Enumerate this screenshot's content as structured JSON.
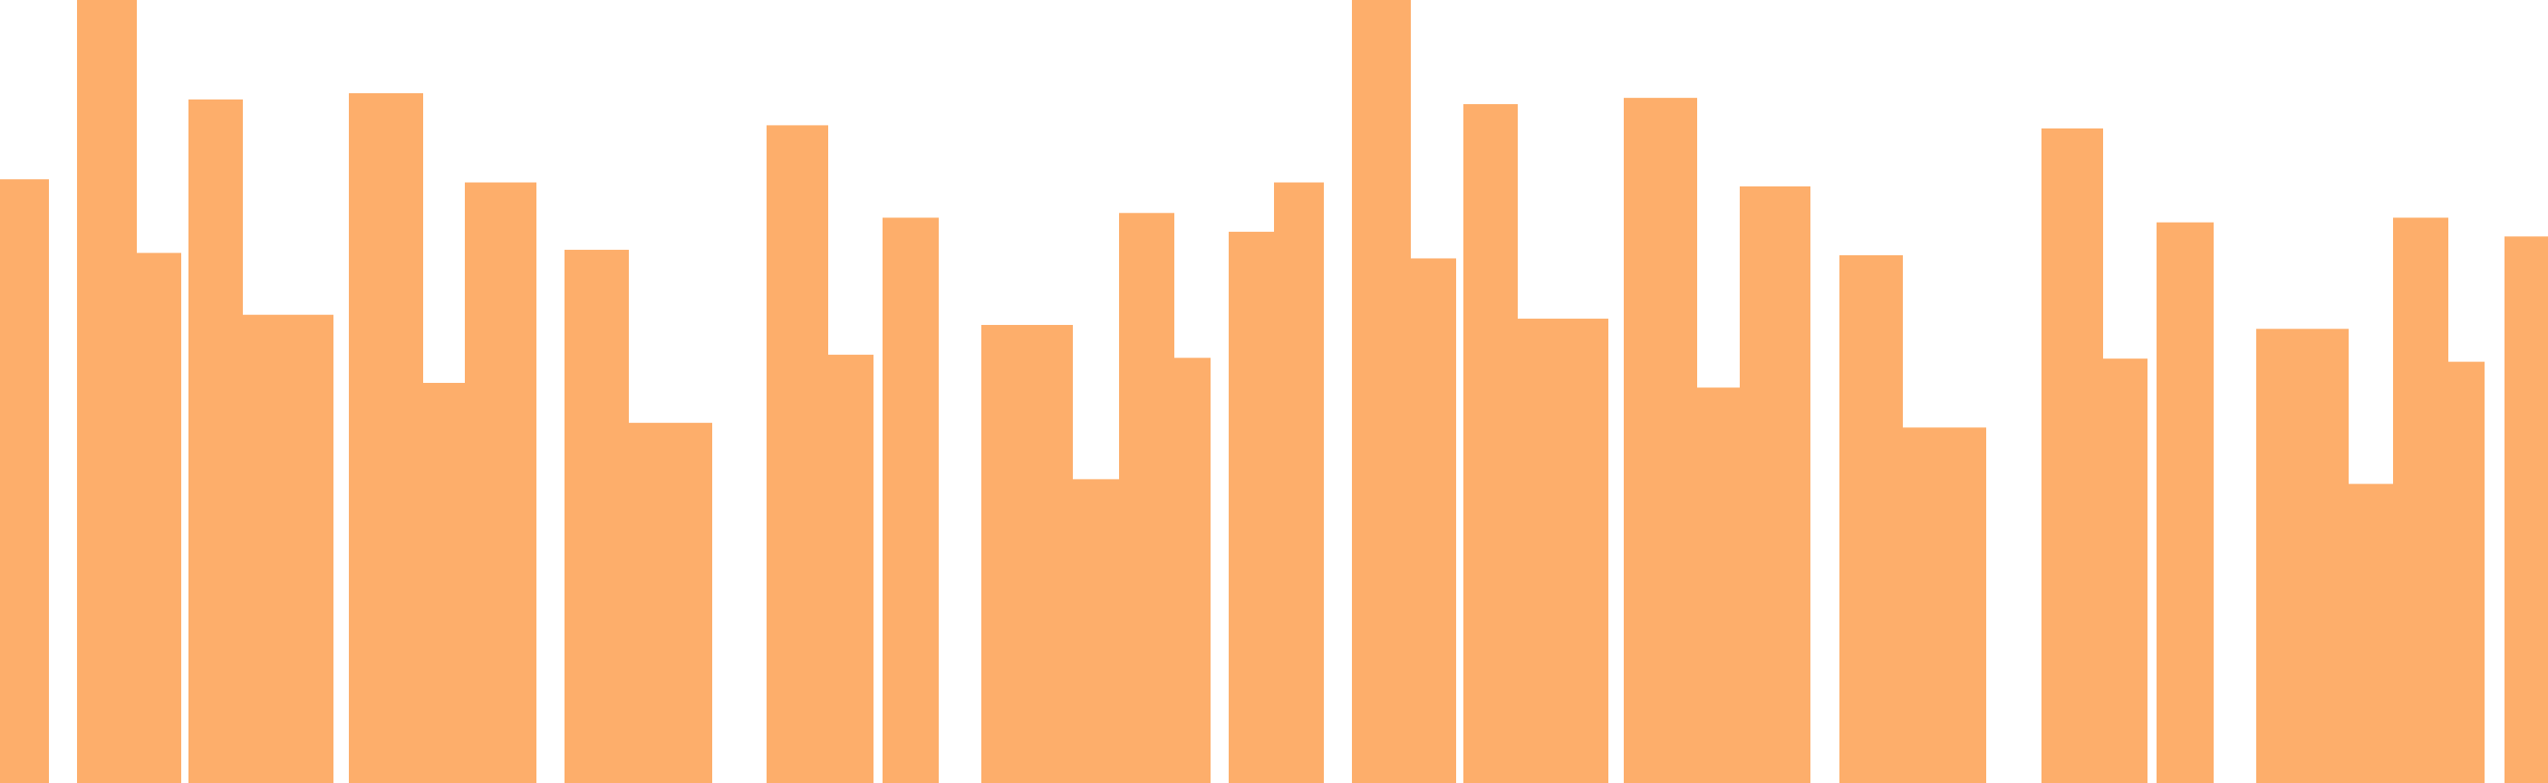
{
  "chart_data": {
    "type": "bar",
    "grid": false,
    "legend": "none",
    "ylim": [
      0,
      1000
    ],
    "colors": {
      "bar": "#fdae6b",
      "background": "#ffffff"
    },
    "values": [
      771,
      1006,
      677,
      873,
      598,
      881,
      511,
      767,
      681,
      460,
      840,
      547,
      722,
      585,
      388,
      728,
      543,
      704,
      767,
      1002,
      670,
      867,
      593,
      875,
      505,
      762,
      674,
      454,
      836,
      542,
      716,
      580,
      382,
      722,
      538,
      698
    ]
  }
}
